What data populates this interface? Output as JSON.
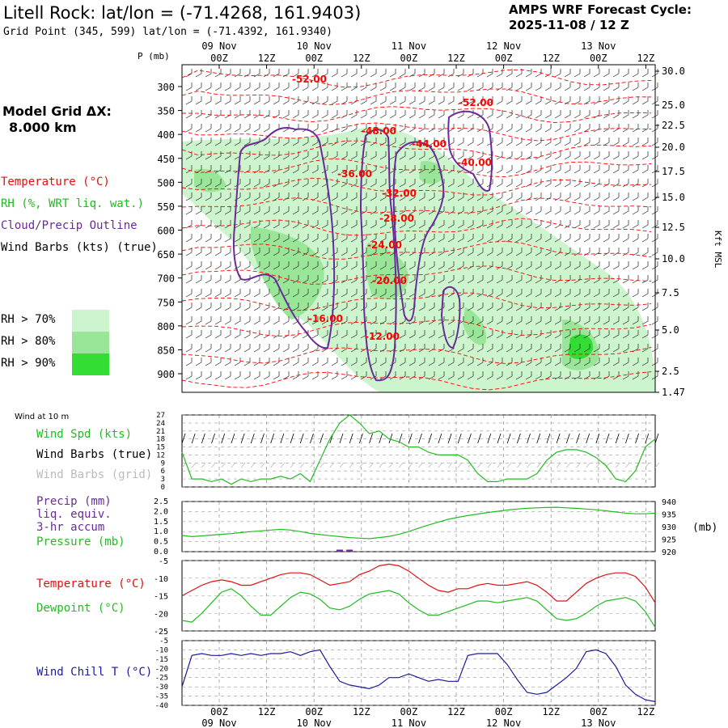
{
  "header": {
    "title": "Litell Rock:  lat/lon = (-71.4268, 161.9403)",
    "grid_point": "Grid Point (345, 599) lat/lon = (-71.4392, 161.9340)",
    "cycle_line1": "AMPS WRF Forecast Cycle:",
    "cycle_line2": "2025-11-08 / 12  Z"
  },
  "left_panel": {
    "model_grid_line1": "Model Grid ΔX:",
    "model_grid_line2": "8.000 km",
    "legend_temperature": "Temperature (°C)",
    "legend_rh": "RH (%, WRT liq. wat.)",
    "legend_cloud": "Cloud/Precip Outline",
    "legend_wind": "Wind Barbs (kts) (true)",
    "rh_levels": [
      "RH > 70%",
      "RH > 80%",
      "RH > 90%"
    ],
    "colors": {
      "temperature": "#ff0000",
      "rh": "#22cc22",
      "cloud": "#6a2a9a",
      "rh70": "#cdf5cd",
      "rh80": "#99e699",
      "rh90": "#33dd33"
    }
  },
  "time_axis": {
    "top_dates": [
      "09 Nov",
      "10 Nov",
      "11 Nov",
      "12 Nov",
      "13 Nov"
    ],
    "bottom_dates": [
      "09 Nov",
      "10 Nov",
      "11 Nov",
      "12 Nov",
      "13 Nov"
    ],
    "hours": [
      "00Z",
      "12Z",
      "00Z",
      "12Z",
      "00Z",
      "12Z",
      "00Z",
      "12Z",
      "00Z",
      "12Z"
    ]
  },
  "chart_data": [
    {
      "type": "heatmap",
      "ylabel_left": "P (mb)",
      "ylabel_right": "Kft MSL",
      "pressure_ticks": [
        300,
        350,
        400,
        450,
        500,
        550,
        600,
        650,
        700,
        750,
        800,
        850,
        900
      ],
      "height_ticks": [
        "30.0",
        "25.0",
        "22.5",
        "20.0",
        "17.5",
        "15.0",
        "12.5",
        "10.0",
        "7.5",
        "5.0",
        "2.5",
        "1.47"
      ],
      "temperature_labels": [
        "-52.00",
        "-52.00",
        "-48.00",
        "-44.00",
        "-40.00",
        "-36.00",
        "-32.00",
        "-28.00",
        "-24.00",
        "-20.00",
        "-16.00",
        "-12.00"
      ]
    },
    {
      "type": "line",
      "title": "Wind at 10 m",
      "legend": [
        "Wind Spd (kts)",
        "Wind Barbs (true)",
        "Wind Barbs (grid)"
      ],
      "yticks": [
        0,
        3,
        6,
        9,
        12,
        15,
        18,
        21,
        24,
        27
      ],
      "series": [
        {
          "name": "Wind Spd (kts)",
          "values": [
            13,
            3,
            3,
            2,
            3,
            1,
            3,
            2,
            3,
            3,
            4,
            3,
            5,
            2,
            10,
            18,
            24,
            27,
            24,
            20,
            21,
            18,
            17,
            15,
            15,
            13,
            12,
            12,
            12,
            10,
            5,
            2,
            2,
            3,
            3,
            3,
            5,
            10,
            13,
            14,
            14,
            13,
            11,
            8,
            3,
            2,
            6,
            15,
            18
          ]
        }
      ]
    },
    {
      "type": "line",
      "legend": [
        "Precip (mm)",
        "liq. equiv.",
        "3-hr accum",
        "Pressure (mb)"
      ],
      "yticks_left": [
        "0.0",
        "0.5",
        "1.0",
        "1.5",
        "2.0",
        "2.5"
      ],
      "yticks_right": [
        920,
        925,
        930,
        935,
        940
      ],
      "unit_right": "(mb)",
      "series": [
        {
          "name": "Pressure (mb)",
          "values": [
            926.5,
            926,
            926.3,
            926.6,
            926.9,
            927.2,
            927.6,
            928.0,
            928.3,
            928.6,
            928.9,
            928.6,
            928.0,
            927.3,
            926.8,
            926.4,
            926.0,
            925.6,
            925.4,
            925.2,
            925.6,
            926.1,
            926.9,
            928.0,
            929.4,
            930.6,
            931.8,
            932.9,
            933.7,
            934.4,
            935.0,
            935.6,
            936.1,
            936.6,
            937.0,
            937.3,
            937.5,
            937.6,
            937.7,
            937.5,
            937.3,
            937.0,
            936.7,
            936.3,
            935.8,
            935.4,
            935.1,
            935.1,
            935.4
          ]
        },
        {
          "name": "Precip (mm)",
          "values": [
            0,
            0,
            0,
            0,
            0,
            0,
            0,
            0,
            0,
            0,
            0,
            0,
            0,
            0,
            0,
            0,
            0.1,
            0.1,
            0,
            0,
            0,
            0,
            0,
            0,
            0,
            0,
            0,
            0,
            0,
            0,
            0,
            0,
            0,
            0,
            0,
            0,
            0,
            0,
            0,
            0,
            0,
            0,
            0,
            0,
            0,
            0,
            0,
            0,
            0
          ]
        }
      ]
    },
    {
      "type": "line",
      "legend": [
        "Temperature (°C)",
        "Dewpoint (°C)"
      ],
      "yticks": [
        -5,
        -10,
        -15,
        -20,
        -25
      ],
      "series": [
        {
          "name": "Temperature (°C)",
          "values": [
            -15,
            -13.5,
            -12,
            -11,
            -10.5,
            -11,
            -12,
            -12,
            -11,
            -10,
            -9,
            -8.5,
            -8.5,
            -9,
            -10.5,
            -12,
            -11.5,
            -11,
            -9,
            -8,
            -6.5,
            -6,
            -6.5,
            -8,
            -10,
            -12,
            -13.5,
            -14,
            -13,
            -13,
            -12,
            -11.5,
            -12,
            -12,
            -11.5,
            -11,
            -12,
            -14,
            -16.5,
            -16.5,
            -14,
            -11.5,
            -10,
            -9,
            -8.5,
            -8.5,
            -9.5,
            -12.5,
            -17
          ]
        },
        {
          "name": "Dewpoint (°C)",
          "values": [
            -22,
            -22.5,
            -20,
            -17,
            -14,
            -13,
            -15,
            -18,
            -20.5,
            -20.5,
            -18,
            -15.5,
            -14,
            -14.5,
            -16,
            -18.5,
            -19,
            -18,
            -16,
            -14.5,
            -14,
            -13.5,
            -14.5,
            -17,
            -19,
            -20.5,
            -20.5,
            -19.5,
            -18.5,
            -17.5,
            -16.5,
            -16.5,
            -17,
            -16.5,
            -16,
            -15.5,
            -16.5,
            -19,
            -21.5,
            -22,
            -21.5,
            -20,
            -18,
            -16.5,
            -16,
            -15.5,
            -16.5,
            -19.5,
            -24
          ]
        }
      ]
    },
    {
      "type": "line",
      "legend": [
        "Wind Chill T (°C)"
      ],
      "yticks": [
        -5,
        -10,
        -15,
        -20,
        -25,
        -30,
        -35,
        -40
      ],
      "series": [
        {
          "name": "Wind Chill T (°C)",
          "values": [
            -30,
            -13,
            -12,
            -13,
            -13,
            -12,
            -13,
            -12,
            -13,
            -12,
            -12,
            -11,
            -13,
            -11,
            -10,
            -19,
            -27,
            -29,
            -30,
            -31,
            -29,
            -25,
            -25,
            -23,
            -25,
            -27,
            -26,
            -27,
            -27,
            -13,
            -12,
            -12,
            -12,
            -18,
            -26,
            -33,
            -34,
            -33,
            -29,
            -25,
            -20,
            -11,
            -10,
            -12,
            -19,
            -29,
            -34,
            -37,
            -38
          ]
        }
      ]
    }
  ]
}
